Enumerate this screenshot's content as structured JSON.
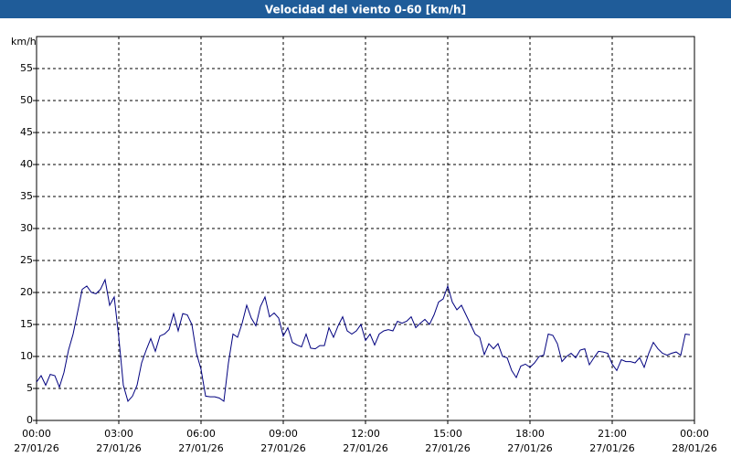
{
  "chart_data": {
    "type": "line",
    "title": "Velocidad del viento 0-60 [km/h]",
    "y_label": "km/h",
    "xlim": [
      0,
      1440
    ],
    "ylim": [
      0,
      60
    ],
    "yticks": [
      0,
      5,
      10,
      15,
      20,
      25,
      30,
      35,
      40,
      45,
      50,
      55
    ],
    "xticks": [
      {
        "value": 0,
        "label": "00:00"
      },
      {
        "value": 180,
        "label": "03:00"
      },
      {
        "value": 360,
        "label": "06:00"
      },
      {
        "value": 540,
        "label": "09:00"
      },
      {
        "value": 720,
        "label": "12:00"
      },
      {
        "value": 900,
        "label": "15:00"
      },
      {
        "value": 1080,
        "label": "18:00"
      },
      {
        "value": 1260,
        "label": "21:00"
      },
      {
        "value": 1440,
        "label": "00:00"
      }
    ],
    "xtick_dates": [
      "27/01/26",
      "27/01/26",
      "27/01/26",
      "27/01/26",
      "27/01/26",
      "27/01/26",
      "27/01/26",
      "27/01/26",
      "28/01/26"
    ],
    "grid": true,
    "x": [
      0,
      10,
      20,
      30,
      40,
      50,
      60,
      70,
      80,
      90,
      100,
      110,
      120,
      130,
      140,
      150,
      160,
      170,
      180,
      190,
      200,
      210,
      220,
      230,
      240,
      250,
      260,
      270,
      280,
      290,
      300,
      310,
      320,
      330,
      340,
      350,
      360,
      370,
      380,
      390,
      400,
      410,
      420,
      430,
      440,
      450,
      460,
      470,
      480,
      490,
      500,
      510,
      520,
      530,
      540,
      550,
      560,
      570,
      580,
      590,
      600,
      610,
      620,
      630,
      640,
      650,
      660,
      670,
      680,
      690,
      700,
      710,
      720,
      730,
      740,
      750,
      760,
      770,
      780,
      790,
      800,
      810,
      820,
      830,
      840,
      850,
      860,
      870,
      880,
      890,
      900,
      910,
      920,
      930,
      940,
      950,
      960,
      970,
      980,
      990,
      1000,
      1010,
      1020,
      1030,
      1040,
      1050,
      1060,
      1070,
      1080,
      1090,
      1100,
      1110,
      1120,
      1130,
      1140,
      1150,
      1160,
      1170,
      1180,
      1190,
      1200,
      1210,
      1220,
      1230,
      1240,
      1250,
      1260,
      1270,
      1280,
      1290,
      1300,
      1310,
      1320,
      1330,
      1340,
      1350,
      1360,
      1370,
      1380,
      1390,
      1400,
      1410,
      1420,
      1430
    ],
    "series": [
      {
        "name": "Velocidad del viento",
        "color": "#00007f",
        "values": [
          6,
          7,
          5.5,
          7.2,
          7,
          5.2,
          7.5,
          11,
          13.5,
          17,
          20.5,
          21,
          20,
          19.8,
          20.5,
          22,
          18,
          19.3,
          13,
          5.5,
          3,
          3.8,
          5.5,
          9,
          11,
          12.8,
          10.8,
          13.2,
          13.5,
          14.2,
          16.7,
          14,
          16.7,
          16.5,
          15,
          10.5,
          8,
          3.8,
          3.7,
          3.7,
          3.5,
          3,
          9,
          13.5,
          13,
          15.2,
          18,
          16,
          14.8,
          17.8,
          19.3,
          16.2,
          16.8,
          16,
          13.2,
          14.5,
          12.2,
          11.8,
          11.5,
          13.5,
          11.3,
          11.2,
          11.7,
          11.7,
          14.5,
          13,
          14.8,
          16.2,
          14,
          13.5,
          14,
          15,
          12.5,
          13.5,
          11.8,
          13.5,
          14,
          14.2,
          14,
          15.5,
          15.2,
          15.5,
          16.2,
          14.5,
          15.2,
          15.8,
          15,
          16.5,
          18.5,
          19,
          21,
          18.5,
          17.3,
          18,
          16.5,
          15,
          13.5,
          13,
          10.3,
          12,
          11.2,
          12,
          10,
          9.8,
          7.8,
          6.7,
          8.5,
          8.8,
          8.3,
          9,
          10,
          10.2,
          13.5,
          13.3,
          12,
          9.2,
          10,
          10.5,
          9.8,
          11,
          11.2,
          8.7,
          9.8,
          10.8,
          10.7,
          10.5,
          8.8,
          7.8,
          9.5,
          9.2,
          9.2,
          9,
          9.8,
          8.3,
          10.5,
          12.2,
          11.2,
          10.5,
          10.2,
          10.5,
          10.7,
          10.2,
          13.5,
          13.4
        ]
      }
    ]
  }
}
